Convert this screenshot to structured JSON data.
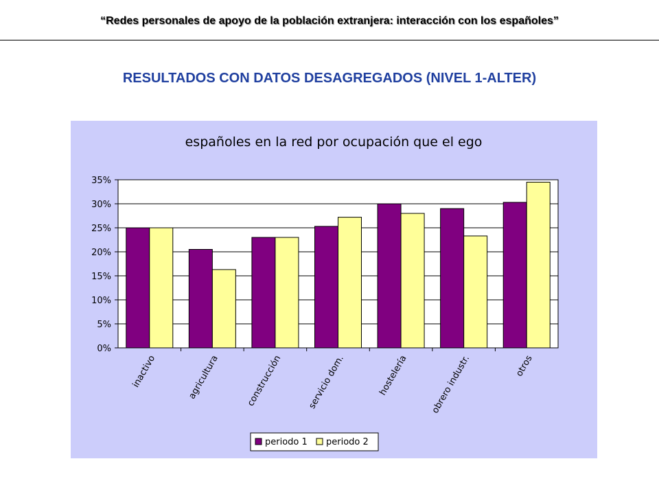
{
  "header": {
    "title": "“Redes personales de apoyo de la población extranjera: interacción con los españoles”"
  },
  "section": {
    "heading": "RESULTADOS CON DATOS DESAGREGADOS (NIVEL 1-ALTER)"
  },
  "colors": {
    "panel_background": "#cccdfb",
    "heading": "#1f3f9f",
    "series_1": "#800080",
    "series_2": "#ffff99"
  },
  "chart_data": {
    "type": "bar",
    "title": "españoles en la red por ocupación que el ego",
    "xlabel": "",
    "ylabel": "",
    "ylim": [
      0,
      0.35
    ],
    "yticks": [
      0,
      0.05,
      0.1,
      0.15,
      0.2,
      0.25,
      0.3,
      0.35
    ],
    "ytick_labels": [
      "0%",
      "5%",
      "10%",
      "15%",
      "20%",
      "25%",
      "30%",
      "35%"
    ],
    "categories": [
      "inactivo",
      "agricultura",
      "construcción",
      "servicio dom.",
      "hostelería",
      "obrero industr.",
      "otros"
    ],
    "series": [
      {
        "name": "periodo 1",
        "color": "#800080",
        "values": [
          0.25,
          0.205,
          0.23,
          0.253,
          0.3,
          0.29,
          0.303
        ]
      },
      {
        "name": "periodo 2",
        "color": "#ffff99",
        "values": [
          0.25,
          0.163,
          0.23,
          0.272,
          0.28,
          0.233,
          0.345
        ]
      }
    ],
    "grid": true,
    "legend": "bottom-center"
  }
}
